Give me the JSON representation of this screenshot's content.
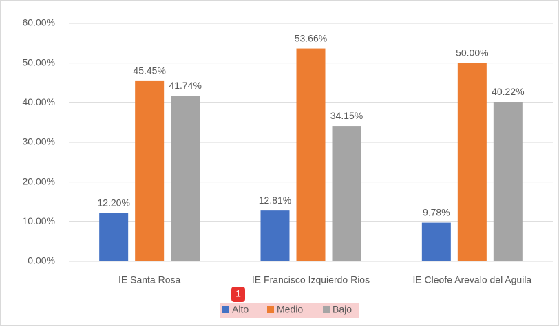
{
  "chart_data": {
    "type": "bar",
    "categories": [
      "IE Santa Rosa",
      "IE Francisco Izquierdo Rios",
      "IE Cleofe Arevalo del Aguila"
    ],
    "series": [
      {
        "name": "Alto",
        "color": "#4472c4",
        "values": [
          12.2,
          12.81,
          9.78
        ],
        "value_labels": [
          "12.20%",
          "12.81%",
          "9.78%"
        ]
      },
      {
        "name": "Medio",
        "color": "#ed7d31",
        "values": [
          45.45,
          53.66,
          50.0
        ],
        "value_labels": [
          "45.45%",
          "53.66%",
          "50.00%"
        ]
      },
      {
        "name": "Bajo",
        "color": "#a5a5a5",
        "values": [
          41.74,
          34.15,
          40.22
        ],
        "value_labels": [
          "41.74%",
          "34.15%",
          "40.22%"
        ]
      }
    ],
    "ylim": [
      0,
      60
    ],
    "yticks": [
      {
        "value": 0,
        "label": "0.00%"
      },
      {
        "value": 10,
        "label": "10.00%"
      },
      {
        "value": 20,
        "label": "20.00%"
      },
      {
        "value": 30,
        "label": "30.00%"
      },
      {
        "value": 40,
        "label": "40.00%"
      },
      {
        "value": 50,
        "label": "50.00%"
      },
      {
        "value": 60,
        "label": "60.00%"
      }
    ],
    "grid": true,
    "legend": "bottom",
    "annotation": "1"
  }
}
